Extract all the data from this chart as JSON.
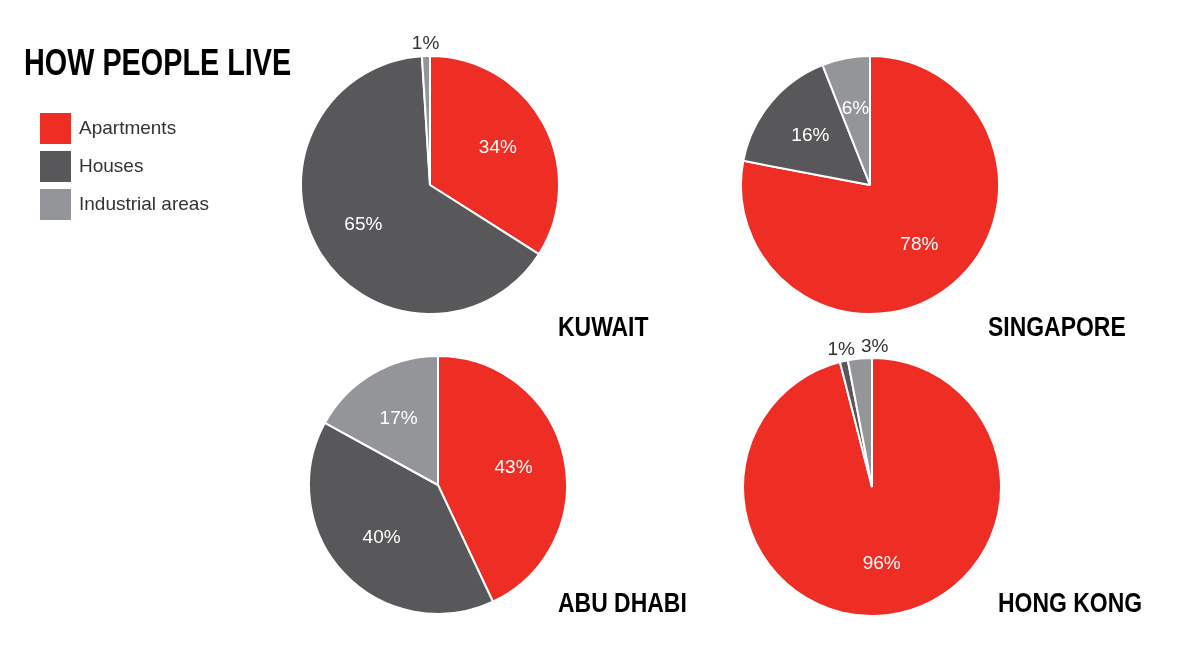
{
  "chart_data": [
    {
      "type": "pie",
      "title": "KUWAIT",
      "annotations": [
        "HOW PEOPLE LIVE"
      ],
      "legend": "left",
      "categories": [
        "Apartments",
        "Houses",
        "Industrial areas"
      ],
      "values": [
        34,
        65,
        1
      ],
      "value_labels": [
        "34%",
        "65%",
        "1%"
      ],
      "colors": [
        "#ee2d24",
        "#58585a",
        "#939598"
      ]
    },
    {
      "type": "pie",
      "title": "SINGAPORE",
      "categories": [
        null,
        null,
        null
      ],
      "values": [
        78,
        16,
        6
      ],
      "value_labels": [
        "78%",
        "16%",
        "6%"
      ],
      "colors": [
        "#ee2d24",
        "#58585a",
        "#939598"
      ]
    },
    {
      "type": "pie",
      "title": "ABU DHABI",
      "categories": [
        null,
        null,
        null
      ],
      "values": [
        43,
        40,
        17
      ],
      "value_labels": [
        "43%",
        "40%",
        "17%"
      ],
      "colors": [
        "#ee2d24",
        "#58585a",
        "#939598"
      ]
    },
    {
      "type": "pie",
      "title": "HONG KONG",
      "categories": [
        null,
        null,
        null
      ],
      "values": [
        96,
        1,
        3
      ],
      "value_labels": [
        "96%",
        "1%",
        "3%"
      ],
      "colors": [
        "#ee2d24",
        "#58585a",
        "#939598"
      ]
    }
  ]
}
